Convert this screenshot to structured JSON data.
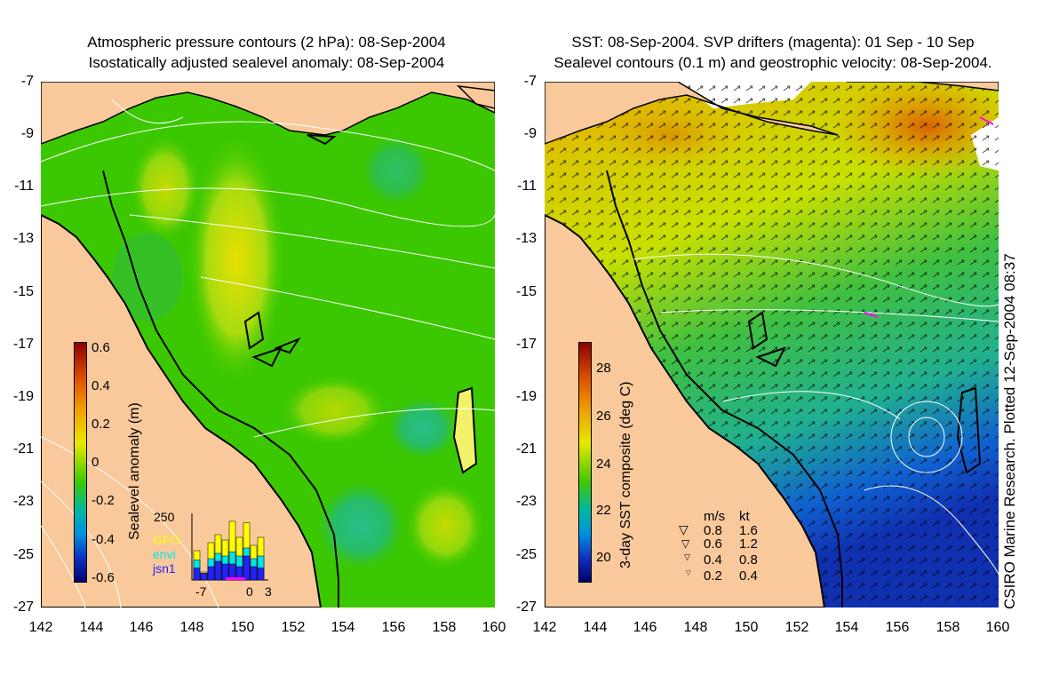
{
  "left_panel": {
    "title_line1": "Atmospheric pressure contours (2 hPa): 08-Sep-2004",
    "title_line2": "Isostatically adjusted sealevel anomaly: 08-Sep-2004",
    "colorbar": {
      "label": "Sealevel anomaly (m)",
      "ticks": [
        "0.6",
        "0.4",
        "0.2",
        "0",
        "-0.2",
        "-0.4",
        "-0.6"
      ]
    },
    "inset": {
      "ymax_label": "250",
      "legend": [
        {
          "name": "GFO",
          "color": "#ffff00"
        },
        {
          "name": "envi",
          "color": "#00e5e5"
        },
        {
          "name": "jsn1",
          "color": "#2222ff"
        }
      ],
      "xticks": [
        "-7",
        "0",
        "3"
      ],
      "counts_total": [
        110,
        30,
        140,
        170,
        150,
        220,
        160,
        215,
        130,
        160
      ],
      "counts_envi": [
        75,
        25,
        80,
        100,
        90,
        105,
        90,
        120,
        80,
        90
      ],
      "counts_jsn1": [
        45,
        25,
        50,
        70,
        60,
        60,
        50,
        90,
        50,
        45
      ]
    }
  },
  "right_panel": {
    "title_line1": "SST: 08-Sep-2004. SVP drifters (magenta): 01 Sep - 10 Sep",
    "title_line2": "Sealevel contours (0.1 m) and geostrophic velocity: 08-Sep-2004.",
    "colorbar": {
      "label": "3-day SST composite (deg C)",
      "ticks": [
        "28",
        "26",
        "24",
        "22",
        "20"
      ]
    },
    "velocity_legend": {
      "header_ms": "m/s",
      "header_kt": "kt",
      "rows": [
        {
          "ms": "0.8",
          "kt": "1.6"
        },
        {
          "ms": "0.6",
          "kt": "1.2"
        },
        {
          "ms": "0.4",
          "kt": "0.8"
        },
        {
          "ms": "0.2",
          "kt": "0.4"
        }
      ]
    },
    "credit": "CSIRO Marine Research. Plotted 12-Sep-2004 08:37"
  },
  "axes": {
    "y_ticks": [
      "-7",
      "-9",
      "-11",
      "-13",
      "-15",
      "-17",
      "-19",
      "-21",
      "-23",
      "-25",
      "-27"
    ],
    "x_ticks": [
      "142",
      "144",
      "146",
      "148",
      "150",
      "152",
      "154",
      "156",
      "158",
      "160"
    ]
  },
  "colors": {
    "land": "#f9c99b",
    "sla_positive": "#e8e000",
    "sla_zero": "#22c000",
    "sla_negative": "#00b0c8",
    "sst_warm": "#d06000",
    "sst_mid": "#30c030",
    "sst_cool": "#1040d0"
  }
}
